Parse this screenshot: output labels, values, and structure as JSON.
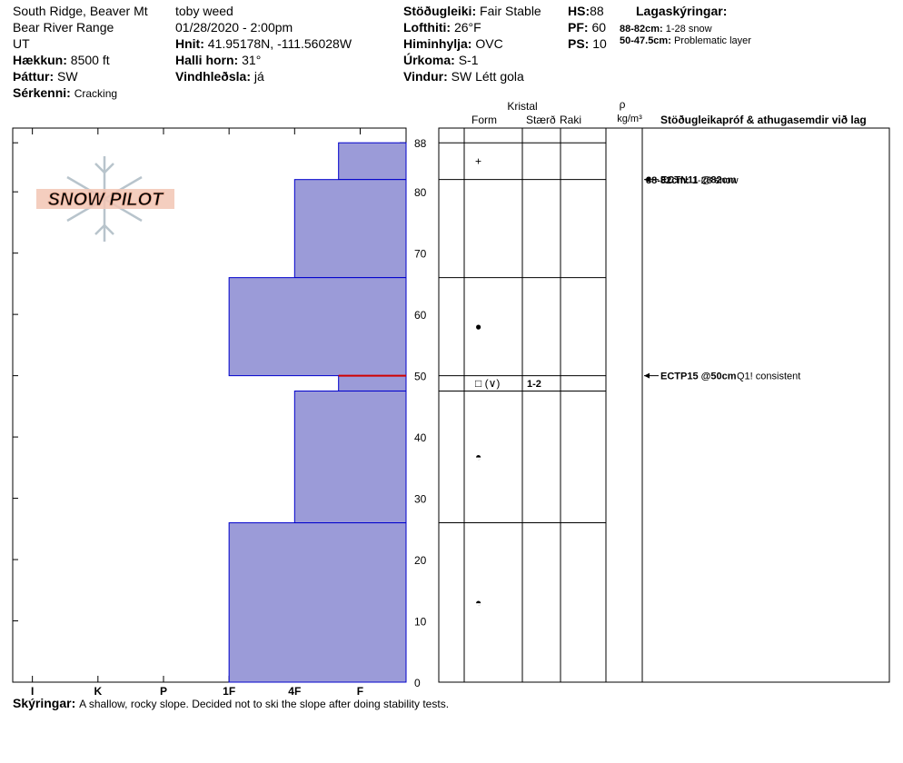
{
  "header": {
    "location": [
      "South Ridge, Beaver Mt",
      "Bear River Range",
      "UT"
    ],
    "elevation": {
      "label": "Hækkun:",
      "value": "8500 ft"
    },
    "aspect": {
      "label": "Þáttur:",
      "value": "SW"
    },
    "features": {
      "label": "Sérkenni:",
      "value": "Cracking"
    },
    "observer": "toby weed",
    "datetime": "01/28/2020 - 2:00pm",
    "coords": {
      "label": "Hnit:",
      "value": "41.95178N, -111.56028W"
    },
    "slope": {
      "label": "Halli horn:",
      "value": "31°"
    },
    "wind_loading": {
      "label": "Vindhleðsla:",
      "value": "já"
    },
    "stability": {
      "label": "Stöðugleiki:",
      "value": "Fair Stable"
    },
    "air_temp": {
      "label": "Lofthiti:",
      "value": "26°F"
    },
    "sky": {
      "label": "Himinhylja:",
      "value": "OVC"
    },
    "precip": {
      "label": "Úrkoma:",
      "value": "S-1"
    },
    "wind": {
      "label": "Vindur:",
      "value": "SW Létt gola"
    },
    "hs": {
      "label": "HS:",
      "value": 88
    },
    "pf": {
      "label": "PF:",
      "value": 60
    },
    "ps": {
      "label": "PS:",
      "value": 10
    },
    "legend_title": "Lagaskýringar:",
    "legend": [
      {
        "range": "88-82cm:",
        "text": "1-28 snow"
      },
      {
        "range": "50-47.5cm:",
        "text": "Problematic layer"
      }
    ]
  },
  "logo": "SNOW PILOT",
  "chart_data": {
    "type": "snow-profile",
    "ylim": [
      0,
      90.4
    ],
    "yticks": [
      0,
      10,
      20,
      30,
      40,
      50,
      60,
      70,
      80,
      88
    ],
    "xlim": [
      6.3,
      0.3
    ],
    "xticks": [
      {
        "value": 6,
        "label": "I"
      },
      {
        "value": 5,
        "label": "K"
      },
      {
        "value": 4,
        "label": "P"
      },
      {
        "value": 3,
        "label": "1F"
      },
      {
        "value": 2,
        "label": "4F"
      },
      {
        "value": 1,
        "label": "F"
      }
    ],
    "bar_color": "#9b9bd8",
    "edge_color": "#0000cc",
    "problem_color": "#d00000",
    "problem_depth": 50,
    "layers": [
      {
        "top": 88,
        "bottom": 82,
        "hardness": 1.33,
        "form": "+",
        "note": {
          "range": "88-82cm:",
          "text": "1-28 snow"
        }
      },
      {
        "top": 82,
        "bottom": 66,
        "hardness": 2
      },
      {
        "top": 66,
        "bottom": 50,
        "hardness": 3,
        "form": "●"
      },
      {
        "top": 50,
        "bottom": 47.5,
        "hardness": 1.33,
        "form": "□ (∨)",
        "size": "1-2"
      },
      {
        "top": 47.5,
        "bottom": 26,
        "hardness": 2,
        "form": "◓"
      },
      {
        "top": 26,
        "bottom": 0,
        "hardness": 3,
        "form": "◓"
      }
    ],
    "tests": [
      {
        "depth": 82,
        "name": "ECTN11 @82cm"
      },
      {
        "depth": 50,
        "name": "ECTP15 @50cm",
        "comment": "Q1! consistent"
      }
    ]
  },
  "table": {
    "crystal": "Kristal",
    "form": "Form",
    "size": "Stærð",
    "moisture": "Raki",
    "density": "ρ",
    "density_unit": "kg/m³",
    "comments": "Stöðugleikapróf & athugasemdir við lag"
  },
  "footer": {
    "label": "Skýringar:",
    "text": "A shallow, rocky slope.  Decided not to ski the slope after doing stability tests."
  }
}
